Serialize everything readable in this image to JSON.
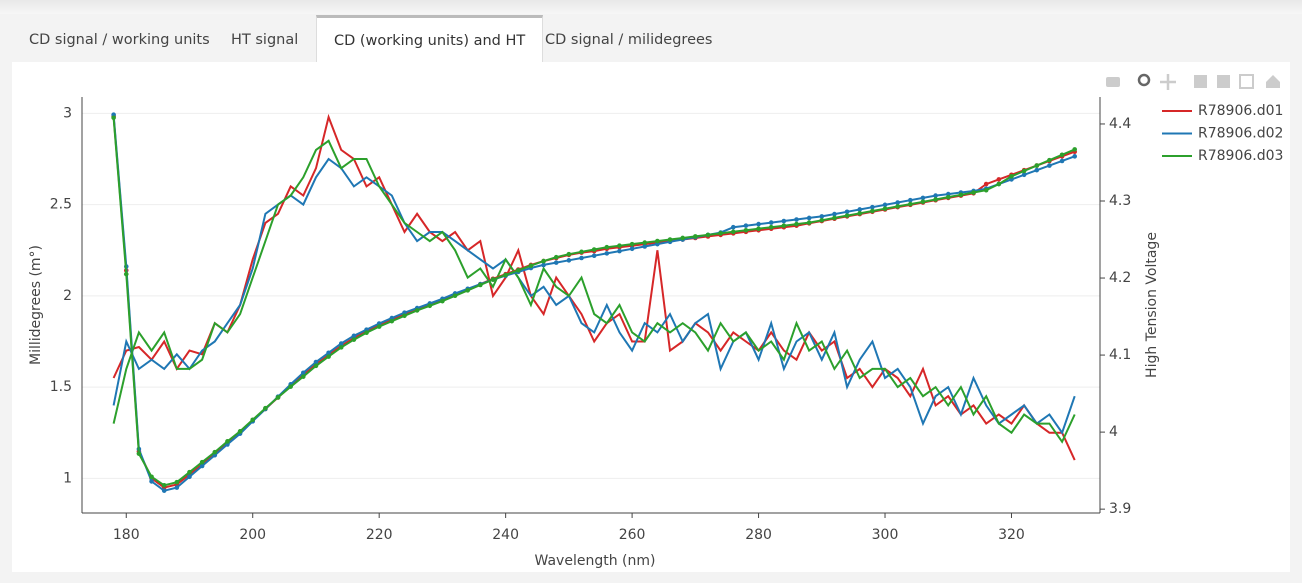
{
  "tabs": [
    "CD signal / working units",
    "HT signal",
    "CD (working units) and HT",
    "CD signal / milidegrees"
  ],
  "active_tab": 2,
  "chart_data": {
    "type": "line",
    "xlabel": "Wavelength (nm)",
    "ylabel": "Millidegrees (m°)",
    "y2label": "High Tension Voltage",
    "xlim": [
      173,
      334
    ],
    "xticks": [
      180,
      200,
      220,
      240,
      260,
      280,
      300,
      320
    ],
    "ylim": [
      0.81,
      3.09
    ],
    "yticks": [
      1,
      1.5,
      2,
      2.5,
      3
    ],
    "y2lim": [
      3.895,
      4.435
    ],
    "y2ticks": [
      3.9,
      4,
      4.1,
      4.2,
      4.3,
      4.4
    ],
    "grid": true,
    "legend": "top-right",
    "x": [
      178,
      180,
      182,
      184,
      186,
      188,
      190,
      192,
      194,
      196,
      198,
      200,
      202,
      204,
      206,
      208,
      210,
      212,
      214,
      216,
      218,
      220,
      222,
      224,
      226,
      228,
      230,
      232,
      234,
      236,
      238,
      240,
      242,
      244,
      246,
      248,
      250,
      252,
      254,
      256,
      258,
      260,
      262,
      264,
      266,
      268,
      270,
      272,
      274,
      276,
      278,
      280,
      282,
      284,
      286,
      288,
      290,
      292,
      294,
      296,
      298,
      300,
      302,
      304,
      306,
      308,
      310,
      312,
      314,
      316,
      318,
      320,
      322,
      324,
      326,
      328,
      330
    ],
    "series": [
      {
        "name": "R78906.d01",
        "color": "#d62728",
        "axis": "y",
        "markers": false,
        "values": [
          1.55,
          1.7,
          1.72,
          1.65,
          1.75,
          1.6,
          1.7,
          1.68,
          1.85,
          1.8,
          1.95,
          2.2,
          2.4,
          2.45,
          2.6,
          2.55,
          2.7,
          2.98,
          2.8,
          2.75,
          2.6,
          2.65,
          2.5,
          2.35,
          2.45,
          2.35,
          2.3,
          2.35,
          2.25,
          2.3,
          2.0,
          2.1,
          2.25,
          2.0,
          1.9,
          2.1,
          2.0,
          1.9,
          1.75,
          1.85,
          1.9,
          1.75,
          1.75,
          2.25,
          1.7,
          1.75,
          1.85,
          1.8,
          1.7,
          1.8,
          1.75,
          1.7,
          1.8,
          1.7,
          1.65,
          1.8,
          1.7,
          1.75,
          1.55,
          1.6,
          1.5,
          1.6,
          1.55,
          1.45,
          1.6,
          1.4,
          1.45,
          1.35,
          1.4,
          1.3,
          1.35,
          1.3,
          1.4,
          1.3,
          1.25,
          1.25,
          1.1
        ]
      },
      {
        "name": "R78906.d02",
        "color": "#1f77b4",
        "axis": "y",
        "markers": false,
        "values": [
          1.4,
          1.75,
          1.6,
          1.65,
          1.6,
          1.68,
          1.6,
          1.7,
          1.75,
          1.85,
          1.95,
          2.15,
          2.45,
          2.5,
          2.55,
          2.5,
          2.65,
          2.75,
          2.7,
          2.6,
          2.65,
          2.6,
          2.55,
          2.4,
          2.3,
          2.35,
          2.35,
          2.3,
          2.25,
          2.2,
          2.15,
          2.2,
          2.1,
          2.0,
          2.05,
          1.95,
          2.0,
          1.85,
          1.8,
          1.95,
          1.8,
          1.7,
          1.85,
          1.8,
          1.9,
          1.75,
          1.85,
          1.9,
          1.6,
          1.75,
          1.8,
          1.65,
          1.85,
          1.6,
          1.75,
          1.8,
          1.65,
          1.8,
          1.5,
          1.65,
          1.75,
          1.55,
          1.6,
          1.5,
          1.3,
          1.45,
          1.5,
          1.35,
          1.55,
          1.4,
          1.3,
          1.35,
          1.4,
          1.3,
          1.35,
          1.25,
          1.45
        ]
      },
      {
        "name": "R78906.d03",
        "color": "#2ca02c",
        "axis": "y",
        "markers": false,
        "values": [
          1.3,
          1.6,
          1.8,
          1.7,
          1.8,
          1.6,
          1.6,
          1.65,
          1.85,
          1.8,
          1.9,
          2.1,
          2.3,
          2.5,
          2.55,
          2.65,
          2.8,
          2.85,
          2.7,
          2.75,
          2.75,
          2.6,
          2.5,
          2.4,
          2.35,
          2.3,
          2.35,
          2.25,
          2.1,
          2.15,
          2.05,
          2.2,
          2.1,
          1.95,
          2.15,
          2.05,
          2.0,
          2.1,
          1.9,
          1.85,
          1.95,
          1.8,
          1.75,
          1.85,
          1.8,
          1.85,
          1.8,
          1.7,
          1.85,
          1.75,
          1.8,
          1.7,
          1.75,
          1.65,
          1.85,
          1.7,
          1.75,
          1.6,
          1.7,
          1.55,
          1.6,
          1.6,
          1.5,
          1.55,
          1.45,
          1.5,
          1.4,
          1.5,
          1.35,
          1.45,
          1.3,
          1.25,
          1.35,
          1.3,
          1.3,
          1.2,
          1.35
        ]
      },
      {
        "name": "R78906.d01",
        "color": "#d62728",
        "axis": "y2",
        "markers": true,
        "values": [
          4.41,
          4.21,
          3.975,
          3.94,
          3.928,
          3.932,
          3.945,
          3.958,
          3.972,
          3.986,
          4.0,
          4.015,
          4.03,
          4.045,
          4.06,
          4.074,
          4.088,
          4.1,
          4.112,
          4.122,
          4.131,
          4.139,
          4.146,
          4.153,
          4.159,
          4.165,
          4.171,
          4.178,
          4.185,
          4.192,
          4.199,
          4.205,
          4.211,
          4.217,
          4.222,
          4.226,
          4.23,
          4.233,
          4.235,
          4.238,
          4.24,
          4.242,
          4.244,
          4.246,
          4.248,
          4.25,
          4.252,
          4.254,
          4.256,
          4.258,
          4.26,
          4.262,
          4.264,
          4.266,
          4.268,
          4.271,
          4.274,
          4.277,
          4.28,
          4.283,
          4.286,
          4.289,
          4.292,
          4.295,
          4.298,
          4.301,
          4.304,
          4.307,
          4.31,
          4.322,
          4.328,
          4.334,
          4.34,
          4.346,
          4.352,
          4.358,
          4.364
        ]
      },
      {
        "name": "R78906.d02",
        "color": "#1f77b4",
        "axis": "y2",
        "markers": true,
        "values": [
          4.412,
          4.215,
          3.978,
          3.936,
          3.924,
          3.928,
          3.942,
          3.956,
          3.97,
          3.984,
          3.998,
          4.014,
          4.03,
          4.046,
          4.062,
          4.077,
          4.091,
          4.103,
          4.115,
          4.125,
          4.133,
          4.141,
          4.148,
          4.155,
          4.161,
          4.167,
          4.173,
          4.18,
          4.186,
          4.192,
          4.198,
          4.203,
          4.208,
          4.213,
          4.217,
          4.22,
          4.223,
          4.226,
          4.229,
          4.232,
          4.235,
          4.238,
          4.241,
          4.244,
          4.247,
          4.25,
          4.253,
          4.256,
          4.259,
          4.266,
          4.268,
          4.27,
          4.272,
          4.274,
          4.276,
          4.278,
          4.28,
          4.283,
          4.286,
          4.289,
          4.292,
          4.295,
          4.298,
          4.301,
          4.304,
          4.307,
          4.309,
          4.311,
          4.313,
          4.316,
          4.322,
          4.328,
          4.334,
          4.34,
          4.346,
          4.352,
          4.358
        ]
      },
      {
        "name": "R78906.d03",
        "color": "#2ca02c",
        "axis": "y2",
        "markers": true,
        "values": [
          4.408,
          4.205,
          3.972,
          3.942,
          3.931,
          3.935,
          3.948,
          3.961,
          3.974,
          3.988,
          4.001,
          4.016,
          4.031,
          4.045,
          4.059,
          4.072,
          4.086,
          4.098,
          4.11,
          4.12,
          4.129,
          4.137,
          4.144,
          4.151,
          4.158,
          4.164,
          4.17,
          4.177,
          4.184,
          4.191,
          4.198,
          4.204,
          4.21,
          4.216,
          4.222,
          4.227,
          4.231,
          4.234,
          4.237,
          4.24,
          4.242,
          4.244,
          4.246,
          4.248,
          4.25,
          4.252,
          4.254,
          4.256,
          4.258,
          4.26,
          4.262,
          4.264,
          4.266,
          4.268,
          4.27,
          4.272,
          4.275,
          4.278,
          4.281,
          4.284,
          4.287,
          4.29,
          4.293,
          4.296,
          4.299,
          4.302,
          4.305,
          4.308,
          4.311,
          4.314,
          4.322,
          4.332,
          4.339,
          4.346,
          4.353,
          4.36,
          4.367
        ]
      }
    ]
  }
}
